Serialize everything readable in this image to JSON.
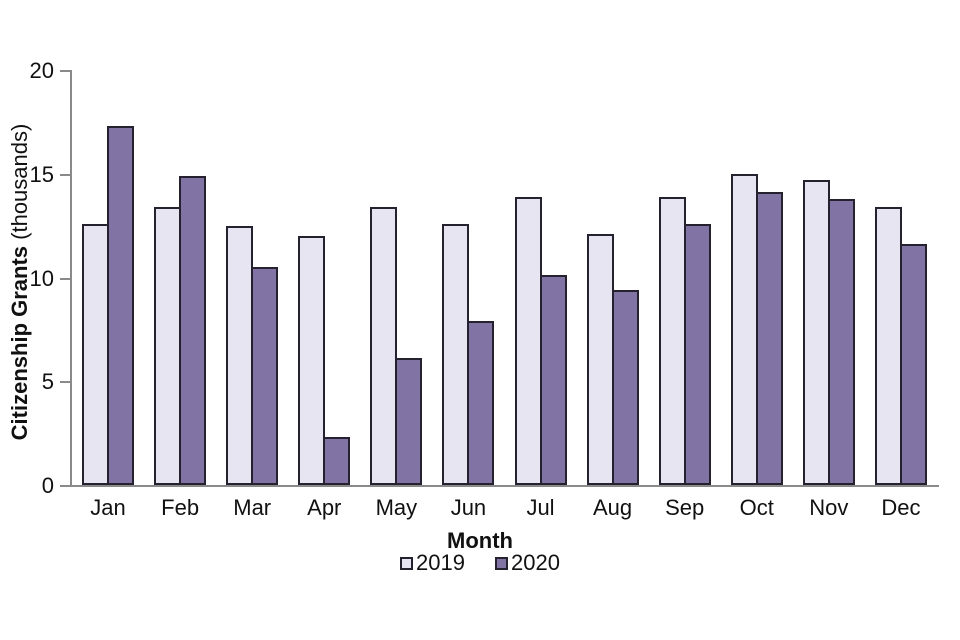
{
  "chart_data": {
    "type": "bar",
    "title": "",
    "xlabel": "Month",
    "ylabel_bold": "Citizenship Grants",
    "ylabel_regular": " (thousands)",
    "categories": [
      "Jan",
      "Feb",
      "Mar",
      "Apr",
      "May",
      "Jun",
      "Jul",
      "Aug",
      "Sep",
      "Oct",
      "Nov",
      "Dec"
    ],
    "series": [
      {
        "name": "2019",
        "color": "#e8e5f2",
        "values": [
          12.6,
          13.4,
          12.5,
          12.0,
          13.4,
          12.6,
          13.9,
          12.1,
          13.9,
          15.0,
          14.7,
          13.4
        ]
      },
      {
        "name": "2020",
        "color": "#8173a4",
        "values": [
          17.3,
          14.9,
          10.5,
          2.3,
          6.1,
          7.9,
          10.1,
          9.4,
          12.6,
          14.1,
          13.8,
          11.6
        ]
      }
    ],
    "ylim": [
      0,
      20
    ],
    "yticks": [
      0,
      5,
      10,
      15,
      20
    ],
    "grid": false,
    "legend_position": "bottom",
    "colors": {
      "axis": "#8a8a8a",
      "bar_border": "#26212e",
      "text": "#111111",
      "background": "#ffffff"
    }
  }
}
